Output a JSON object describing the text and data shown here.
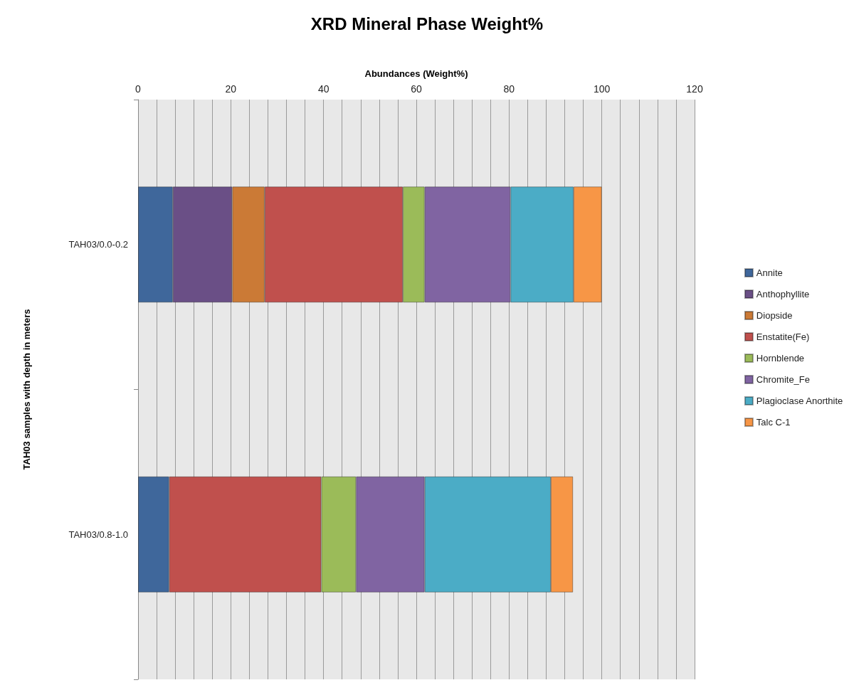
{
  "chart_data": {
    "type": "bar",
    "orientation": "horizontal",
    "stacked": true,
    "title": "XRD Mineral Phase Weight%",
    "xlabel": "Abundances (Weight%)",
    "ylabel": "TAH03 samples with depth in meters",
    "categories": [
      "TAH03/0.0-0.2",
      "TAH03/0.8-1.0"
    ],
    "series": [
      {
        "name": "Annite",
        "color": "#3f679b",
        "values": [
          7.5,
          6.7
        ]
      },
      {
        "name": "Anthophyllite",
        "color": "#6a4f86",
        "values": [
          12.8,
          null
        ]
      },
      {
        "name": "Diopside",
        "color": "#cb7a36",
        "values": [
          7.0,
          null
        ]
      },
      {
        "name": "Enstatite(Fe)",
        "color": "#c0504d",
        "values": [
          29.8,
          32.8
        ]
      },
      {
        "name": "Hornblende",
        "color": "#9bbb59",
        "values": [
          4.7,
          7.5
        ]
      },
      {
        "name": "Chromite_Fe",
        "color": "#8064a2",
        "values": [
          18.5,
          14.8
        ]
      },
      {
        "name": "Plagioclase Anorthite",
        "color": "#4bacc6",
        "values": [
          13.6,
          27.2
        ]
      },
      {
        "name": "Talc C-1",
        "color": "#f79646",
        "values": [
          6.1,
          4.8
        ]
      }
    ],
    "xlim": [
      0,
      120
    ],
    "xticks": [
      0,
      {
        "value": 4,
        "label": null
      },
      {
        "value": 8,
        "label": null
      },
      {
        "value": 12,
        "label": null
      },
      {
        "value": 16,
        "label": null
      },
      20,
      {
        "value": 24,
        "label": null
      },
      {
        "value": 28,
        "label": null
      },
      {
        "value": 32,
        "label": null
      },
      {
        "value": 36,
        "label": null
      },
      40,
      {
        "value": 44,
        "label": null
      },
      {
        "value": 48,
        "label": null
      },
      {
        "value": 52,
        "label": null
      },
      {
        "value": 56,
        "label": null
      },
      60,
      {
        "value": 64,
        "label": null
      },
      {
        "value": 68,
        "label": null
      },
      {
        "value": 72,
        "label": null
      },
      {
        "value": 76,
        "label": null
      },
      80,
      {
        "value": 84,
        "label": null
      },
      {
        "value": 88,
        "label": null
      },
      {
        "value": 92,
        "label": null
      },
      {
        "value": 96,
        "label": null
      },
      100,
      {
        "value": 104,
        "label": null
      },
      {
        "value": 108,
        "label": null
      },
      {
        "value": 112,
        "label": null
      },
      {
        "value": 116,
        "label": null
      },
      120
    ],
    "grid": "x",
    "legend": "right"
  }
}
